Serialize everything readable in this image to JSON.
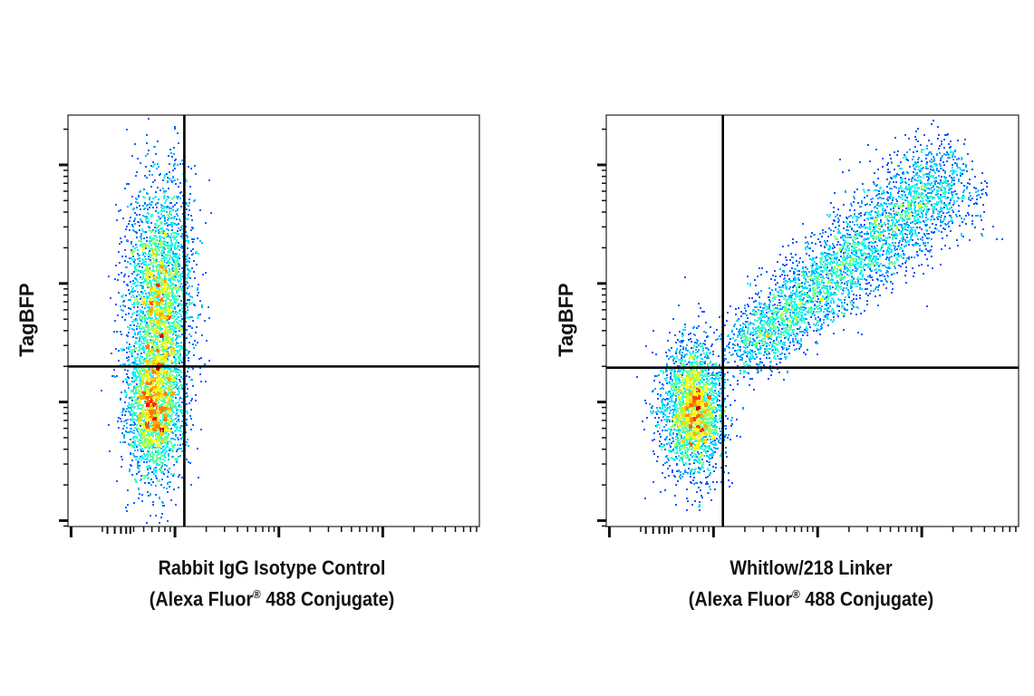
{
  "chart_data": [
    {
      "type": "scatter",
      "style": "density pseudocolor dot plot (jet colormap)",
      "ylabel": "TagBFP",
      "xlabel_line1": "Rabbit IgG Isotype Control",
      "xlabel_line2_pre": "(Alexa Fluor",
      "xlabel_line2_sup": "®",
      "xlabel_line2_post": " 488 Conjugate)",
      "x_scale": "log",
      "y_scale": "log",
      "xlim_decades": [
        -0.03,
        3.93
      ],
      "ylim_decades": [
        -0.05,
        3.42
      ],
      "tick_labels_shown": false,
      "quadrant_gate": {
        "x": 1.09,
        "y": 1.3
      },
      "populations": [
        {
          "center": [
            0.8,
            0.95
          ],
          "sd": [
            0.14,
            0.3
          ],
          "count": 2200
        },
        {
          "center": [
            0.85,
            1.9
          ],
          "sd": [
            0.16,
            0.48
          ],
          "count": 2800
        }
      ]
    },
    {
      "type": "scatter",
      "style": "density pseudocolor dot plot (jet colormap)",
      "ylabel": "TagBFP",
      "xlabel_line1": "Whitlow/218 Linker",
      "xlabel_line2_pre": "(Alexa Fluor",
      "xlabel_line2_sup": "®",
      "xlabel_line2_post": " 488 Conjugate)",
      "x_scale": "log",
      "y_scale": "log",
      "xlim_decades": [
        -0.03,
        3.93
      ],
      "ylim_decades": [
        -0.05,
        3.42
      ],
      "tick_labels_shown": false,
      "quadrant_gate": {
        "x": 1.09,
        "y": 1.29
      },
      "populations": [
        {
          "center": [
            0.8,
            0.95
          ],
          "sd": [
            0.15,
            0.28
          ],
          "count": 2600
        },
        {
          "line_from": [
            1.1,
            1.3
          ],
          "line_to": [
            3.5,
            3.1
          ],
          "perp_sd": 0.17,
          "count": 3800
        }
      ]
    }
  ]
}
